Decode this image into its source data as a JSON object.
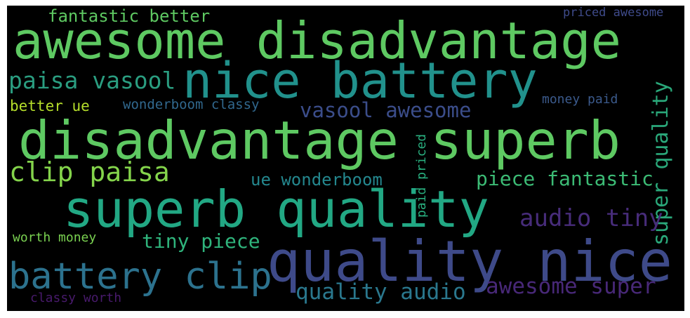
{
  "words": [
    {
      "id": "fantastic-better",
      "text": "fantastic better",
      "color": "#5ec962"
    },
    {
      "id": "priced-awesome",
      "text": "priced awesome",
      "color": "#3e4a89"
    },
    {
      "id": "awesome-disadvantage",
      "text": "awesome disadvantage",
      "color": "#5ec962"
    },
    {
      "id": "nice-battery",
      "text": "nice battery",
      "color": "#21918c"
    },
    {
      "id": "paisa-vasool",
      "text": "paisa vasool",
      "color": "#2a9d80"
    },
    {
      "id": "better-ue",
      "text": "better ue",
      "color": "#b5de2b"
    },
    {
      "id": "wonderboom-classy",
      "text": "wonderboom classy",
      "color": "#31688e"
    },
    {
      "id": "vasool-awesome",
      "text": "vasool awesome",
      "color": "#3b4d8a"
    },
    {
      "id": "money-paid",
      "text": "money paid",
      "color": "#3b5a8c"
    },
    {
      "id": "super-quality",
      "text": "super quality",
      "color": "#2aa87a"
    },
    {
      "id": "disadvantage-superb",
      "text": "disadvantage superb",
      "color": "#5ec962"
    },
    {
      "id": "paid-priced",
      "text": "paid priced",
      "color": "#29af7f"
    },
    {
      "id": "clip-paisa",
      "text": "clip paisa",
      "color": "#84d44b"
    },
    {
      "id": "ue-wonderboom",
      "text": "ue wonderboom",
      "color": "#24878e"
    },
    {
      "id": "piece-fantastic",
      "text": "piece fantastic",
      "color": "#3cbb75"
    },
    {
      "id": "superb-quality",
      "text": "superb quality",
      "color": "#22a884"
    },
    {
      "id": "audio-tiny",
      "text": "audio tiny",
      "color": "#472c7a"
    },
    {
      "id": "worth-money",
      "text": "worth money",
      "color": "#7ad151"
    },
    {
      "id": "tiny-piece",
      "text": "tiny piece",
      "color": "#2fb47c"
    },
    {
      "id": "quality-nice",
      "text": "quality nice",
      "color": "#3e4a89"
    },
    {
      "id": "battery-clip",
      "text": "battery clip",
      "color": "#2c728e"
    },
    {
      "id": "quality-audio",
      "text": "quality audio",
      "color": "#2a788e"
    },
    {
      "id": "awesome-super",
      "text": "awesome super",
      "color": "#482878"
    },
    {
      "id": "classy-worth",
      "text": "classy worth",
      "color": "#481a6c"
    }
  ]
}
